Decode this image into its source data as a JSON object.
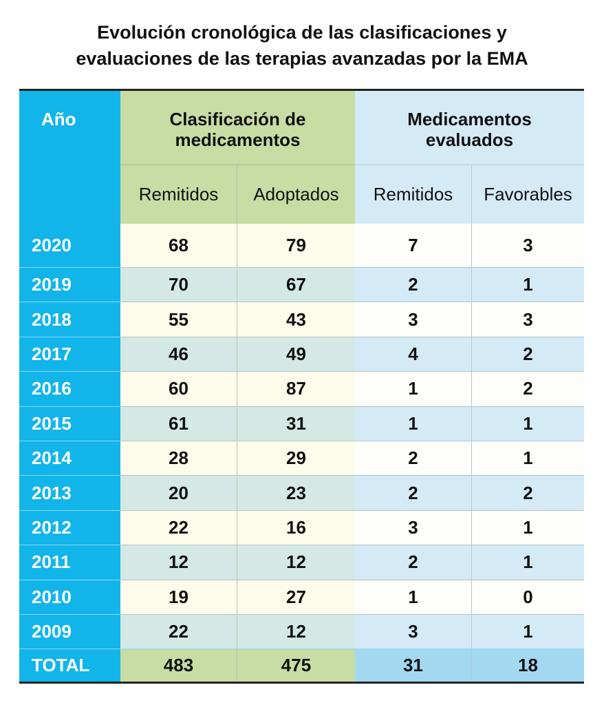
{
  "title": [
    "Evolución cronológica de las clasificaciones y",
    "evaluaciones de las terapias avanzadas por la EMA"
  ],
  "chart_data": {
    "type": "table",
    "headers": {
      "year": "Año",
      "group1": "Clasificación de medicamentos",
      "group2": "Medicamentos evaluados",
      "sub": [
        "Remitidos",
        "Adoptados",
        "Remitidos",
        "Favorables"
      ]
    },
    "rows": [
      {
        "year": "2020",
        "values": [
          "68",
          "79",
          "7",
          "3"
        ]
      },
      {
        "year": "2019",
        "values": [
          "70",
          "67",
          "2",
          "1"
        ]
      },
      {
        "year": "2018",
        "values": [
          "55",
          "43",
          "3",
          "3"
        ]
      },
      {
        "year": "2017",
        "values": [
          "46",
          "49",
          "4",
          "2"
        ]
      },
      {
        "year": "2016",
        "values": [
          "60",
          "87",
          "1",
          "2"
        ]
      },
      {
        "year": "2015",
        "values": [
          "61",
          "31",
          "1",
          "1"
        ]
      },
      {
        "year": "2014",
        "values": [
          "28",
          "29",
          "2",
          "1"
        ]
      },
      {
        "year": "2013",
        "values": [
          "20",
          "23",
          "2",
          "2"
        ]
      },
      {
        "year": "2012",
        "values": [
          "22",
          "16",
          "3",
          "1"
        ]
      },
      {
        "year": "2011",
        "values": [
          "12",
          "12",
          "2",
          "1"
        ]
      },
      {
        "year": "2010",
        "values": [
          "19",
          "27",
          "1",
          "0"
        ]
      },
      {
        "year": "2009",
        "values": [
          "22",
          "12",
          "3",
          "1"
        ]
      }
    ],
    "total": {
      "label": "TOTAL",
      "values": [
        "483",
        "475",
        "31",
        "18"
      ]
    }
  },
  "colors": {
    "year_column": "#12b5ea",
    "group1_header": "#c8dca4",
    "group2_header": "#d4eaf7",
    "total_group2": "#a3d8f1"
  }
}
